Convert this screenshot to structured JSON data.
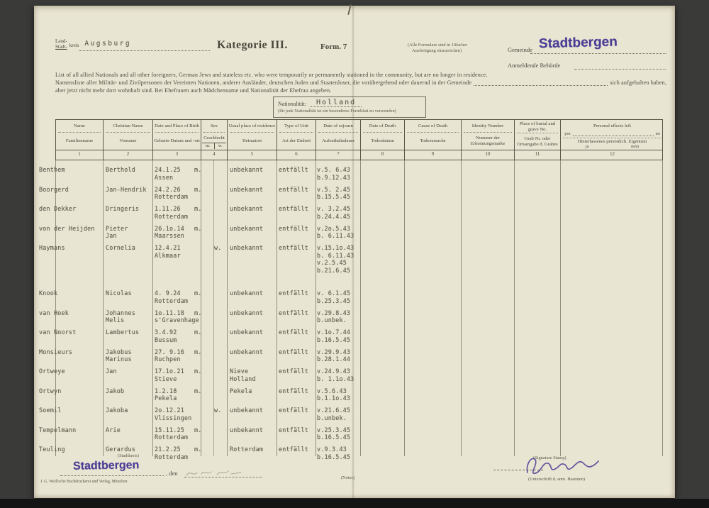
{
  "colors": {
    "stamp_purple": "#4a3d94",
    "paper": "#e9e5d3",
    "ink": "#4b473d"
  },
  "header": {
    "kreis": {
      "line1": "Land-",
      "line2": "Stadt-",
      "word": "kreis",
      "value": "Augsburg"
    },
    "title": "Kategorie III.",
    "form_no": "Form. 7",
    "copies_note": [
      "(Alle Formulare sind in 10facher",
      "Ausfertigung einzureichen)"
    ],
    "gemeinde_label": "Gemeinde",
    "gemeinde_stamp": "Stadtbergen",
    "behoerde_label": "Anmeldende Behörde"
  },
  "intro": {
    "en": "List of all allied Nationals and all other foreigners, German Jews and stateless etc. who were temporarily or permanently stationed in the community, but are no longer in residence.",
    "de1": "Namensliste aller Militär- und Zivilpersonen der Vereinten Nationen, anderer Ausländer, deutschen Juden und Staatenloser, die vorübergehend oder dauernd in der Gemeinde",
    "de1_suffix": "sich aufgehalten haben,",
    "de2": "aber jetzt nicht mehr dort wohnhaft sind. Bei Ehefrauen auch Mädchenname und Nationalität der Ehefrau angeben."
  },
  "nationality": {
    "label": "Nationalität:",
    "value": "Holland",
    "note": "(für jede Nationalität ist ein besonderes Formblatt zu verwenden)"
  },
  "table": {
    "columns": [
      {
        "en": "Name",
        "de": "Familienname",
        "num": "1"
      },
      {
        "en": "Christian Name",
        "de": "Vorname",
        "num": "2"
      },
      {
        "en": "Date and Place of Birth",
        "de": "Geburts-Datum und -ort",
        "num": "3"
      },
      {
        "en": "Sex",
        "de": "Geschlecht",
        "sub_m": "m.",
        "sub_w": "w.",
        "num": "4"
      },
      {
        "en": "Usual place of residence",
        "de": "Heimatort",
        "num": "5"
      },
      {
        "en": "Type of Unit",
        "de": "Art der Einheit",
        "num": "6"
      },
      {
        "en": "Date of sojourn",
        "de": "Aufenthaltsdauer",
        "num": "7"
      },
      {
        "en": "Date of Death",
        "de": "Todesdatum",
        "num": "8"
      },
      {
        "en": "Cause of Death",
        "de": "Todesursache",
        "num": "9"
      },
      {
        "en": "Identity Number",
        "de": "Nummer der Erkennungsmarke",
        "num": "10"
      },
      {
        "en": "Place of burial and grave No.",
        "de": "Grab Nr. oder Ortsangabe d. Grabes",
        "num": "11"
      },
      {
        "en": "Personal effects left",
        "en_sub_left": "yes",
        "en_sub_right": "no",
        "de": "Hinterlassenes persönlich. Eigentum",
        "de_sub_left": "ja",
        "de_sub_right": "nein",
        "num": "12"
      }
    ],
    "rows": [
      {
        "name": "Benthem",
        "vorname": "Berthold",
        "birth": "24.1.25\nAssen",
        "sex": "m",
        "heimat": "unbekannt",
        "einheit": "entfällt",
        "sojourn": "v.5. 6.43\nb.9.12.43"
      },
      {
        "name": "Boorgerd",
        "vorname": "Jan-Hendrik",
        "birth": "24.2.26\nRotterdam",
        "sex": "m",
        "heimat": "unbekannt",
        "einheit": "entfällt",
        "sojourn": "v.5. 2.45\nb.15.5.45"
      },
      {
        "name": "den Dekker",
        "vorname": "Dringeris",
        "birth": "1.11.26\nRotterdam",
        "sex": "m",
        "heimat": "unbekannt",
        "einheit": "entfällt",
        "sojourn": "v. 3.2.45\nb.24.4.45"
      },
      {
        "name": "von der Heijden",
        "vorname": "Pieter\nJan",
        "birth": "26.1o.14\nMaarssen",
        "sex": "m",
        "heimat": "unbekannt",
        "einheit": "entfällt",
        "sojourn": "v.2o.5.43\nb. 6.11.43"
      },
      {
        "name": "Haymans",
        "vorname": "Cornelia",
        "birth": "12.4.21\nAlkmaar",
        "sex": "w",
        "heimat": "unbekannt",
        "einheit": "entfällt",
        "sojourn": "v.15.1o.43\nb. 6.11.43\nv.2.5.45\nb.21.6.45"
      },
      {
        "name": "Knook",
        "vorname": "Nicolas",
        "birth": "4. 9.24\nRotterdam",
        "sex": "m",
        "heimat": "unbekannt",
        "einheit": "entfällt",
        "sojourn": "v. 6.1.45\nb.25.3.45"
      },
      {
        "name": "van Hoek",
        "vorname": "Johannes\nMelis",
        "birth": "1o.11.18\ns'Gravenhage",
        "sex": "m",
        "heimat": "unbekannt",
        "einheit": "entfällt",
        "sojourn": "v.29.8.43\nb.unbek."
      },
      {
        "name": "van Noorst",
        "vorname": "Lambertus",
        "birth": "3.4.92\nBussum",
        "sex": "m",
        "heimat": "unbekannt",
        "einheit": "entfällt",
        "sojourn": "v.1o.7.44\nb.16.5.45"
      },
      {
        "name": "Monsieurs",
        "vorname": "Jakobus\nMarinus",
        "birth": "27. 9.16\nRuchpen",
        "sex": "m",
        "heimat": "unbekannt",
        "einheit": "entfällt",
        "sojourn": "v.29.9.43\nb.28.1.44"
      },
      {
        "name": "Ortweye",
        "vorname": "Jan",
        "birth": "17.1o.21\nStieve",
        "sex": "m",
        "heimat": "Nieve\nHolland",
        "einheit": "entfällt",
        "sojourn": "v.24.9.43\nb. 1.1o.43"
      },
      {
        "name": "Ortwyn",
        "vorname": "Jakob",
        "birth": "1.2.18\nPekela",
        "sex": "m",
        "heimat": "Pekela",
        "einheit": "entfällt",
        "sojourn": "v.5.6.43\nb.1.1o.43"
      },
      {
        "name": "Soemil",
        "vorname": "Jakoba",
        "birth": "2o.12.21\nVlissingen",
        "sex": "w",
        "heimat": "unbekannt",
        "einheit": "entfällt",
        "sojourn": "v.21.6.45\nb.unbek."
      },
      {
        "name": "Tempelmann",
        "vorname": "Arie",
        "birth": "15.11.25\nRotterdam",
        "sex": "m",
        "heimat": "unbekannt",
        "einheit": "entfällt",
        "sojourn": "v.25.3.45\nb.16.5.45"
      },
      {
        "name": "Teuling",
        "vorname": "Gerardus",
        "birth": "21.2.25\nRotterdam",
        "sex": "m",
        "heimat": "Rotterdam",
        "einheit": "entfällt",
        "sojourn": "v.9.3.43\nb.16.5.45"
      }
    ]
  },
  "footer": {
    "place_caption": "(Stadtkreis)",
    "place_stamp": "Stadtbergen",
    "den_label": ", den",
    "notes_caption": "(Notes)",
    "signature_caption": "(Signature Stamp)",
    "signature_sub_caption": "(Unterschrift d. anm. Beamten)",
    "printer": "J. G. Weiß'sche Buchdruckerei und Verlag, München."
  }
}
